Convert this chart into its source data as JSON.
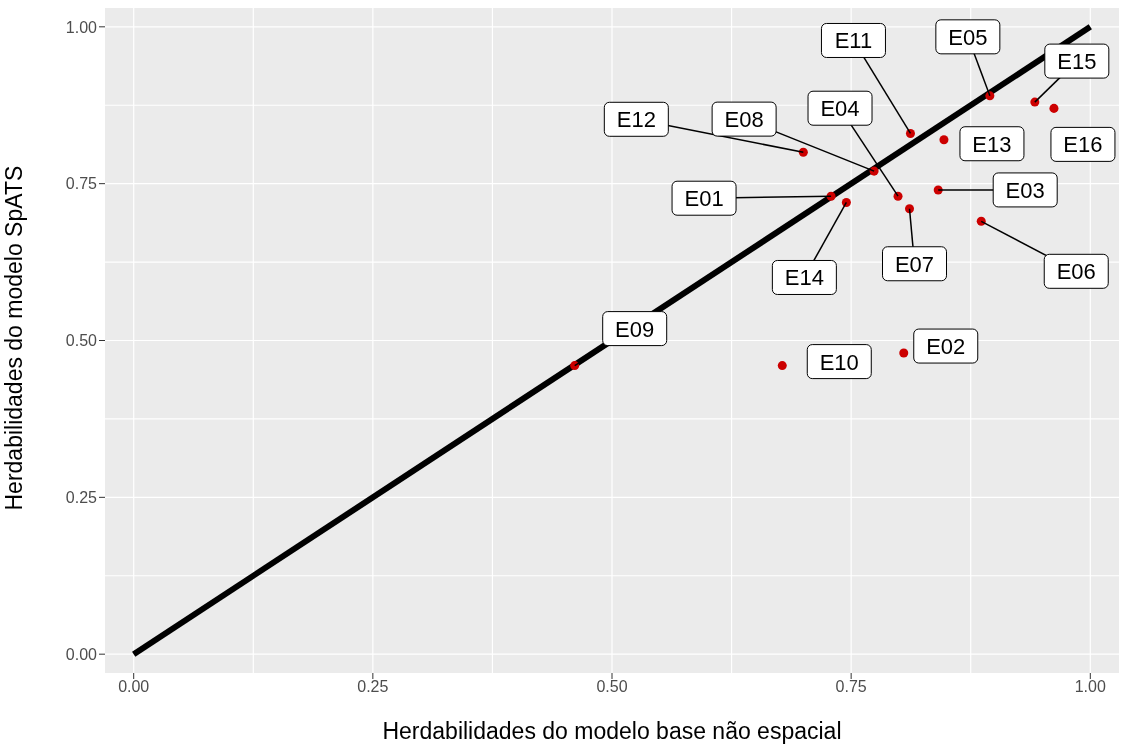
{
  "chart_data": {
    "type": "scatter",
    "xlabel": "Herdabilidades do modelo base não espacial",
    "ylabel": "Herdabilidades do modelo SpATS",
    "xlim": [
      -0.03,
      1.03
    ],
    "ylim": [
      -0.03,
      1.03
    ],
    "xticks": [
      {
        "value": 0,
        "label": "0.00"
      },
      {
        "value": 0.25,
        "label": "0.25"
      },
      {
        "value": 0.5,
        "label": "0.50"
      },
      {
        "value": 0.75,
        "label": "0.75"
      },
      {
        "value": 1,
        "label": "1.00"
      }
    ],
    "yticks": [
      {
        "value": 0,
        "label": "0.00"
      },
      {
        "value": 0.25,
        "label": "0.25"
      },
      {
        "value": 0.5,
        "label": "0.50"
      },
      {
        "value": 0.75,
        "label": "0.75"
      },
      {
        "value": 1,
        "label": "1.00"
      }
    ],
    "grid": true,
    "legend": false,
    "series": [
      {
        "color": "#cc0000",
        "marker": "circle",
        "x": [
          0.7,
          0.774,
          0.729,
          0.745,
          0.799,
          0.811,
          0.812,
          0.847,
          0.841,
          0.886,
          0.895,
          0.942,
          0.962,
          0.461,
          0.678,
          0.805
        ],
        "values": [
          0.8,
          0.77,
          0.73,
          0.72,
          0.73,
          0.71,
          0.83,
          0.82,
          0.74,
          0.69,
          0.89,
          0.88,
          0.87,
          0.46,
          0.46,
          0.48
        ]
      },
      {
        "type": "line",
        "color": "#000000",
        "x": [
          0,
          1
        ],
        "values": [
          0,
          1
        ],
        "line_style": "solid",
        "marker": "none"
      }
    ],
    "annotations": [
      {
        "text": "E12",
        "x": 0.7,
        "y": 0.8
      },
      {
        "text": "E08",
        "x": 0.774,
        "y": 0.77
      },
      {
        "text": "E01",
        "x": 0.729,
        "y": 0.73
      },
      {
        "text": "E14",
        "x": 0.745,
        "y": 0.72
      },
      {
        "text": "E04",
        "x": 0.799,
        "y": 0.73
      },
      {
        "text": "E07",
        "x": 0.811,
        "y": 0.71
      },
      {
        "text": "E11",
        "x": 0.812,
        "y": 0.83
      },
      {
        "text": "E13",
        "x": 0.847,
        "y": 0.82
      },
      {
        "text": "E03",
        "x": 0.841,
        "y": 0.74
      },
      {
        "text": "E06",
        "x": 0.886,
        "y": 0.69
      },
      {
        "text": "E05",
        "x": 0.895,
        "y": 0.89
      },
      {
        "text": "E15",
        "x": 0.942,
        "y": 0.88
      },
      {
        "text": "E16",
        "x": 0.962,
        "y": 0.87
      },
      {
        "text": "E09",
        "x": 0.461,
        "y": 0.46
      },
      {
        "text": "E10",
        "x": 0.678,
        "y": 0.46
      },
      {
        "text": "E02",
        "x": 0.805,
        "y": 0.48
      }
    ]
  }
}
